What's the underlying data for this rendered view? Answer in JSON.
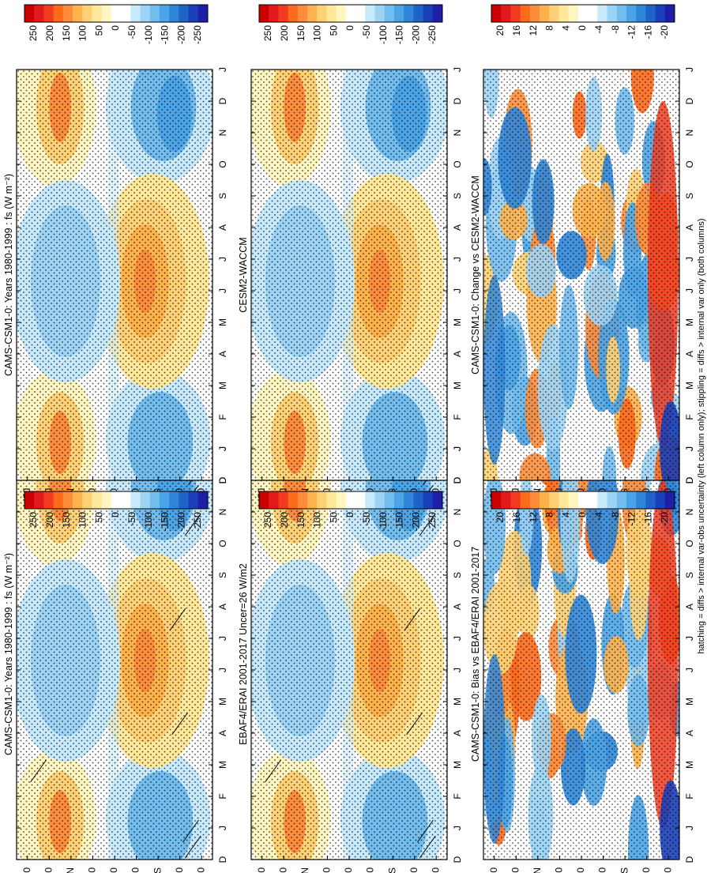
{
  "figure_caption": "hatching = diffs > internal var-obs uncertainty (left column only); stippling = diffs > internal var only (both columns)",
  "colors": {
    "flux_scale": [
      "#cc0000",
      "#e31a1c",
      "#f03b20",
      "#fd6a1c",
      "#fd8d3c",
      "#feb24c",
      "#fed176",
      "#ffe89a",
      "#fff6c2",
      "#ffffff",
      "#ffffff",
      "#c6e9fb",
      "#9dd4f5",
      "#72bdee",
      "#4ba4e6",
      "#2f86d9",
      "#1f63c9",
      "#1a3fb8",
      "#1e1ea8"
    ]
  },
  "chart_data": [
    {
      "id": "model-fs",
      "type": "heatmap",
      "title": "CAMS-CSM1-0: Years 1980-1999 : fs (W m⁻²)",
      "x_ticks": [
        "D",
        "J",
        "F",
        "M",
        "A",
        "M",
        "J",
        "J",
        "A",
        "S",
        "O",
        "N",
        "D",
        "J"
      ],
      "y_ticks": [
        "80",
        "60",
        "°N",
        "20",
        "0",
        "20",
        "°S",
        "60",
        "80"
      ],
      "ylim": [
        90,
        -90
      ],
      "colorbar_labels": [
        "250",
        "200",
        "150",
        "100",
        "50",
        "0",
        "-50",
        "-100",
        "-150",
        "-200",
        "-250"
      ],
      "variable": "fs"
    },
    {
      "id": "model-fs-dup",
      "type": "heatmap",
      "title": "CAMS-CSM1-0: Years 1980-1999 : fs (W m⁻²)",
      "x_ticks": [
        "D",
        "J",
        "F",
        "M",
        "A",
        "M",
        "J",
        "J",
        "A",
        "S",
        "O",
        "N",
        "D",
        "J"
      ],
      "y_ticks": [
        "80",
        "60",
        "°N",
        "20",
        "0",
        "20",
        "°S",
        "60",
        "80"
      ],
      "ylim": [
        90,
        -90
      ],
      "colorbar_labels": [
        "250",
        "200",
        "150",
        "100",
        "50",
        "0",
        "-50",
        "-100",
        "-150",
        "-200",
        "-250"
      ],
      "variable": "fs"
    },
    {
      "id": "obs",
      "type": "heatmap",
      "title": "EBAF4/ERAI 2001-2017 Uncer=26 W/m2",
      "x_ticks": [
        "D",
        "J",
        "F",
        "M",
        "A",
        "M",
        "J",
        "J",
        "A",
        "S",
        "O",
        "N",
        "D",
        "J"
      ],
      "y_ticks": [
        "80",
        "60",
        "°N",
        "20",
        "0",
        "20",
        "°S",
        "60",
        "80"
      ],
      "ylim": [
        90,
        -90
      ],
      "colorbar_labels": [
        "250",
        "200",
        "150",
        "100",
        "50",
        "0",
        "-50",
        "-100",
        "-150",
        "-200",
        "-250"
      ],
      "variable": "fs"
    },
    {
      "id": "ref-model",
      "type": "heatmap",
      "title": "CESM2-WACCM",
      "x_ticks": [
        "D",
        "J",
        "F",
        "M",
        "A",
        "M",
        "J",
        "J",
        "A",
        "S",
        "O",
        "N",
        "D",
        "J"
      ],
      "y_ticks": [
        "80",
        "60",
        "°N",
        "20",
        "0",
        "20",
        "°S",
        "60",
        "80"
      ],
      "ylim": [
        90,
        -90
      ],
      "colorbar_labels": [
        "250",
        "200",
        "150",
        "100",
        "50",
        "0",
        "-50",
        "-100",
        "-150",
        "-200",
        "-250"
      ],
      "variable": "fs"
    },
    {
      "id": "bias",
      "type": "heatmap",
      "title": "CAMS-CSM1-0: Bias vs EBAF4/ERAI 2001-2017",
      "x_ticks": [
        "D",
        "J",
        "F",
        "M",
        "A",
        "M",
        "J",
        "J",
        "A",
        "S",
        "O",
        "N",
        "D",
        "J"
      ],
      "y_ticks": [
        "80",
        "60",
        "°N",
        "20",
        "0",
        "20",
        "°S",
        "60",
        "80"
      ],
      "ylim": [
        90,
        -90
      ],
      "colorbar_labels": [
        "20",
        "16",
        "12",
        "8",
        "4",
        "0",
        "-4",
        "-8",
        "-12",
        "-16",
        "-20"
      ],
      "variable": "fs difference"
    },
    {
      "id": "change",
      "type": "heatmap",
      "title": "CAMS-CSM1-0: Change vs CESM2-WACCM",
      "x_ticks": [
        "D",
        "J",
        "F",
        "M",
        "A",
        "M",
        "J",
        "J",
        "A",
        "S",
        "O",
        "N",
        "D",
        "J"
      ],
      "y_ticks": [
        "80",
        "60",
        "°N",
        "20",
        "0",
        "20",
        "°S",
        "60",
        "80"
      ],
      "ylim": [
        90,
        -90
      ],
      "colorbar_labels": [
        "20",
        "16",
        "12",
        "8",
        "4",
        "0",
        "-4",
        "-8",
        "-12",
        "-16",
        "-20"
      ],
      "variable": "fs difference"
    }
  ]
}
